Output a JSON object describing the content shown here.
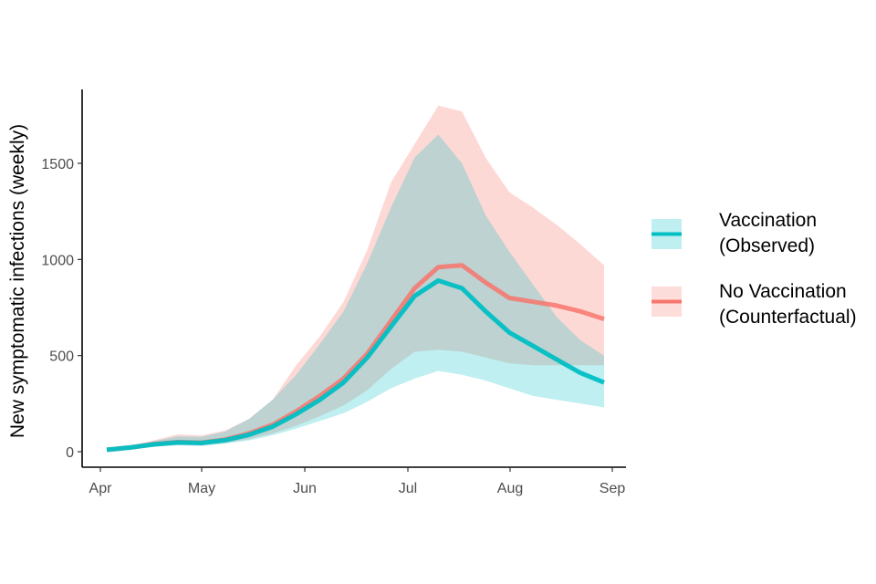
{
  "chart_data": {
    "type": "line",
    "title": "",
    "xlabel": "",
    "ylabel": "New symptomatic infections (weekly)",
    "ylim": [
      -70,
      1900
    ],
    "xlim_weeks": [
      -0.4,
      21.4
    ],
    "yticks": [
      0,
      500,
      1000,
      1500
    ],
    "ytick_labels": [
      "0",
      "500",
      "1000",
      "1500"
    ],
    "xticks": [
      {
        "label": "Apr",
        "week": 0
      },
      {
        "label": "May",
        "week": 4.29
      },
      {
        "label": "Jun",
        "week": 8.71
      },
      {
        "label": "Jul",
        "week": 13.0
      },
      {
        "label": "Aug",
        "week": 17.43
      },
      {
        "label": "Sep",
        "week": 21.86
      }
    ],
    "x_weeks": [
      0,
      1,
      2,
      3,
      4,
      5,
      6,
      7,
      8,
      9,
      10,
      11,
      12,
      13,
      14,
      15,
      16,
      17,
      18,
      19,
      20,
      21
    ],
    "series": [
      {
        "name": "No Vaccination (Counterfactual)",
        "color": "#f8766d",
        "fill": "#f8766d",
        "values": [
          10,
          22,
          40,
          50,
          47,
          63,
          95,
          140,
          210,
          290,
          380,
          510,
          680,
          850,
          960,
          970,
          880,
          800,
          780,
          760,
          730,
          690
        ],
        "lower": [
          5,
          15,
          28,
          35,
          33,
          45,
          65,
          95,
          135,
          185,
          240,
          320,
          430,
          520,
          530,
          520,
          490,
          460,
          450,
          450,
          450,
          450
        ],
        "upper": [
          15,
          30,
          60,
          90,
          85,
          110,
          170,
          270,
          450,
          600,
          780,
          1050,
          1400,
          1600,
          1800,
          1770,
          1530,
          1350,
          1270,
          1180,
          1080,
          970
        ]
      },
      {
        "name": "Vaccination (Observed)",
        "color": "#00bfc4",
        "fill": "#00bfc4",
        "values": [
          10,
          22,
          38,
          48,
          45,
          60,
          88,
          130,
          195,
          270,
          360,
          490,
          650,
          810,
          890,
          850,
          730,
          620,
          550,
          480,
          410,
          360
        ],
        "lower": [
          5,
          15,
          26,
          33,
          30,
          42,
          58,
          85,
          120,
          160,
          200,
          260,
          330,
          380,
          420,
          400,
          370,
          330,
          290,
          270,
          250,
          230
        ],
        "upper": [
          15,
          30,
          55,
          80,
          78,
          105,
          170,
          270,
          400,
          560,
          730,
          980,
          1270,
          1530,
          1650,
          1500,
          1230,
          1040,
          870,
          700,
          580,
          500
        ]
      }
    ],
    "legend": {
      "position": "right",
      "entries": [
        {
          "line1": "Vaccination",
          "line2": "(Observed)",
          "color": "#00bfc4"
        },
        {
          "line1": "No Vaccination",
          "line2": "(Counterfactual)",
          "color": "#f8766d"
        }
      ]
    }
  }
}
